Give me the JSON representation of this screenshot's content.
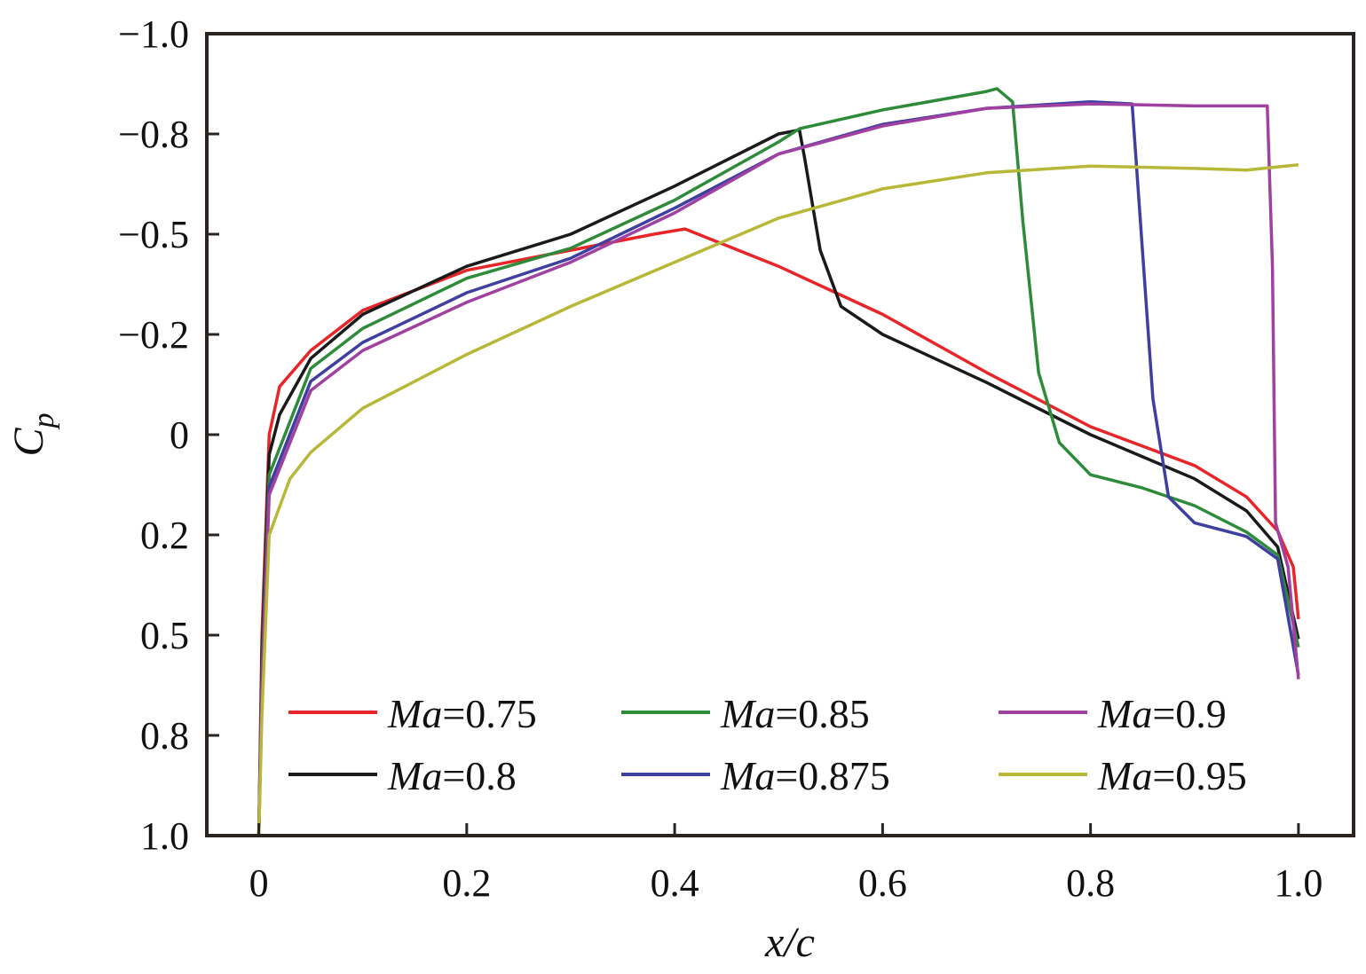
{
  "chart_data": {
    "type": "line",
    "title": "",
    "xlabel": "x/c",
    "ylabel": {
      "main": "C",
      "sub": "p"
    },
    "xlim": [
      -0.05,
      1.053
    ],
    "ylim": [
      1.0,
      -1.0
    ],
    "y_inverted": true,
    "grid": false,
    "legend_placement": "bottom-center",
    "x_ticks": [
      {
        "v": 0,
        "label": "0"
      },
      {
        "v": 0.2,
        "label": "0.2"
      },
      {
        "v": 0.4,
        "label": "0.4"
      },
      {
        "v": 0.6,
        "label": "0.6"
      },
      {
        "v": 0.8,
        "label": "0.8"
      },
      {
        "v": 1.0,
        "label": "1.0"
      }
    ],
    "y_ticks": [
      {
        "v": -1,
        "label": "−1.0"
      },
      {
        "v": -0.75,
        "label": "−0.8"
      },
      {
        "v": -0.5,
        "label": "−0.5"
      },
      {
        "v": -0.25,
        "label": "−0.2"
      },
      {
        "v": 0,
        "label": "0"
      },
      {
        "v": 0.25,
        "label": "0.2"
      },
      {
        "v": 0.5,
        "label": "0.5"
      },
      {
        "v": 0.75,
        "label": "0.8"
      },
      {
        "v": 1.0,
        "label": "1.0"
      }
    ],
    "series": [
      {
        "name": "Ma=0.75",
        "color": "#e8262a",
        "x": [
          0,
          0.003,
          0.01,
          0.02,
          0.05,
          0.1,
          0.2,
          0.3,
          0.38,
          0.41,
          0.5,
          0.6,
          0.7,
          0.8,
          0.9,
          0.95,
          0.98,
          0.995,
          1.0
        ],
        "y": [
          1.0,
          0.5,
          0.0,
          -0.12,
          -0.21,
          -0.31,
          -0.41,
          -0.46,
          -0.5,
          -0.513,
          -0.42,
          -0.3,
          -0.155,
          -0.02,
          0.077,
          0.155,
          0.24,
          0.33,
          0.46
        ]
      },
      {
        "name": "Ma=0.8",
        "color": "#1a1a1a",
        "x": [
          0,
          0.003,
          0.01,
          0.02,
          0.05,
          0.1,
          0.2,
          0.3,
          0.4,
          0.5,
          0.52,
          0.525,
          0.54,
          0.56,
          0.6,
          0.7,
          0.8,
          0.9,
          0.95,
          0.98,
          1.0
        ],
        "y": [
          1.0,
          0.55,
          0.05,
          -0.05,
          -0.19,
          -0.3,
          -0.42,
          -0.5,
          -0.62,
          -0.75,
          -0.76,
          -0.69,
          -0.46,
          -0.32,
          -0.25,
          -0.13,
          0.0,
          0.11,
          0.19,
          0.28,
          0.51
        ]
      },
      {
        "name": "Ma=0.85",
        "color": "#2e8b3a",
        "x": [
          0,
          0.003,
          0.01,
          0.05,
          0.1,
          0.2,
          0.3,
          0.4,
          0.5,
          0.52,
          0.6,
          0.7,
          0.71,
          0.725,
          0.735,
          0.75,
          0.77,
          0.8,
          0.85,
          0.9,
          0.95,
          0.98,
          1.0
        ],
        "y": [
          1.0,
          0.6,
          0.1,
          -0.165,
          -0.265,
          -0.39,
          -0.465,
          -0.585,
          -0.73,
          -0.763,
          -0.81,
          -0.856,
          -0.863,
          -0.83,
          -0.53,
          -0.155,
          0.02,
          0.1,
          0.133,
          0.177,
          0.243,
          0.3,
          0.53
        ]
      },
      {
        "name": "Ma=0.875",
        "color": "#3f3fa0",
        "x": [
          0,
          0.003,
          0.01,
          0.05,
          0.1,
          0.2,
          0.3,
          0.4,
          0.5,
          0.6,
          0.7,
          0.8,
          0.84,
          0.848,
          0.86,
          0.875,
          0.9,
          0.95,
          0.98,
          1.0
        ],
        "y": [
          1.0,
          0.62,
          0.13,
          -0.133,
          -0.23,
          -0.354,
          -0.44,
          -0.565,
          -0.7,
          -0.774,
          -0.814,
          -0.83,
          -0.825,
          -0.53,
          -0.09,
          0.155,
          0.22,
          0.254,
          0.31,
          0.6
        ]
      },
      {
        "name": "Ma=0.9",
        "color": "#a040a0",
        "x": [
          0,
          0.003,
          0.01,
          0.05,
          0.1,
          0.2,
          0.3,
          0.4,
          0.5,
          0.6,
          0.7,
          0.8,
          0.9,
          0.97,
          0.975,
          0.978,
          0.99,
          1.0
        ],
        "y": [
          1.0,
          0.64,
          0.15,
          -0.11,
          -0.21,
          -0.33,
          -0.43,
          -0.553,
          -0.7,
          -0.77,
          -0.814,
          -0.825,
          -0.82,
          -0.82,
          -0.42,
          0.22,
          0.33,
          0.61
        ]
      },
      {
        "name": "Ma=0.95",
        "color": "#b8b838",
        "x": [
          0,
          0.003,
          0.01,
          0.03,
          0.05,
          0.1,
          0.2,
          0.3,
          0.4,
          0.5,
          0.6,
          0.7,
          0.8,
          0.9,
          0.95,
          1.0
        ],
        "y": [
          1.0,
          0.7,
          0.25,
          0.11,
          0.044,
          -0.066,
          -0.2,
          -0.32,
          -0.43,
          -0.54,
          -0.613,
          -0.653,
          -0.67,
          -0.664,
          -0.66,
          -0.673
        ]
      }
    ]
  }
}
